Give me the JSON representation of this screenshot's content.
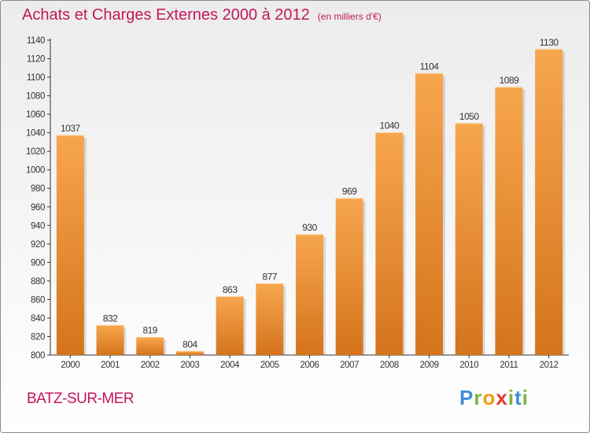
{
  "header": {
    "title": "Achats et Charges Externes 2000 à 2012",
    "subtitle": "(en milliers d'€)"
  },
  "footer": {
    "city": "BATZ-SUR-MER",
    "brand_letters": [
      {
        "ch": "P",
        "color": "#3d8fd6"
      },
      {
        "ch": "r",
        "color": "#7cb342"
      },
      {
        "ch": "o",
        "color": "#f39c12"
      },
      {
        "ch": "x",
        "color": "#e53935"
      },
      {
        "ch": "i",
        "color": "#7cb342"
      },
      {
        "ch": "t",
        "color": "#3d8fd6"
      },
      {
        "ch": "i",
        "color": "#7cb342"
      }
    ]
  },
  "colors": {
    "accent": "#c2185b",
    "bar_light": "#f7a64e",
    "bar_dark": "#d4741c",
    "axis": "#333333"
  },
  "chart_data": {
    "type": "bar",
    "title": "Achats et Charges Externes 2000 à 2012",
    "subtitle": "(en milliers d'€)",
    "categories": [
      "2000",
      "2001",
      "2002",
      "2003",
      "2004",
      "2005",
      "2006",
      "2007",
      "2008",
      "2009",
      "2010",
      "2011",
      "2012"
    ],
    "values": [
      1037,
      832,
      819,
      804,
      863,
      877,
      930,
      969,
      1040,
      1104,
      1050,
      1089,
      1130
    ],
    "ylim": [
      800,
      1140
    ],
    "yticks": [
      800,
      820,
      840,
      860,
      880,
      900,
      920,
      940,
      960,
      980,
      1000,
      1020,
      1040,
      1060,
      1080,
      1100,
      1120,
      1140
    ],
    "xlabel": "",
    "ylabel": "",
    "grid": false,
    "legend": "none"
  }
}
